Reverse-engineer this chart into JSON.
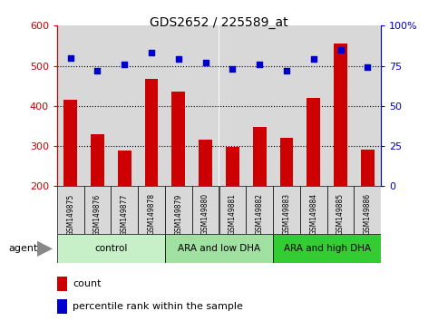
{
  "title": "GDS2652 / 225589_at",
  "samples": [
    "GSM149875",
    "GSM149876",
    "GSM149877",
    "GSM149878",
    "GSM149879",
    "GSM149880",
    "GSM149881",
    "GSM149882",
    "GSM149883",
    "GSM149884",
    "GSM149885",
    "GSM149886"
  ],
  "counts": [
    415,
    330,
    288,
    468,
    435,
    315,
    298,
    348,
    320,
    420,
    555,
    292
  ],
  "percentile_ranks": [
    80,
    72,
    76,
    83,
    79,
    77,
    73,
    76,
    72,
    79,
    85,
    74
  ],
  "groups": [
    {
      "label": "control",
      "start": 0,
      "end": 4,
      "color": "#c8f0c8"
    },
    {
      "label": "ARA and low DHA",
      "start": 4,
      "end": 8,
      "color": "#a0e0a0"
    },
    {
      "label": "ARA and high DHA",
      "start": 8,
      "end": 12,
      "color": "#33cc33"
    }
  ],
  "ylim_left": [
    200,
    600
  ],
  "ylim_right": [
    0,
    100
  ],
  "yticks_left": [
    200,
    300,
    400,
    500,
    600
  ],
  "yticks_right": [
    0,
    25,
    50,
    75,
    100
  ],
  "bar_color": "#cc0000",
  "scatter_color": "#0000cc",
  "grid_yticks": [
    300,
    400,
    500
  ],
  "col_bg_color": "#d8d8d8",
  "bg_color": "#ffffff",
  "bar_width": 0.5,
  "agent_label": "agent",
  "legend_count_label": "count",
  "legend_pct_label": "percentile rank within the sample"
}
